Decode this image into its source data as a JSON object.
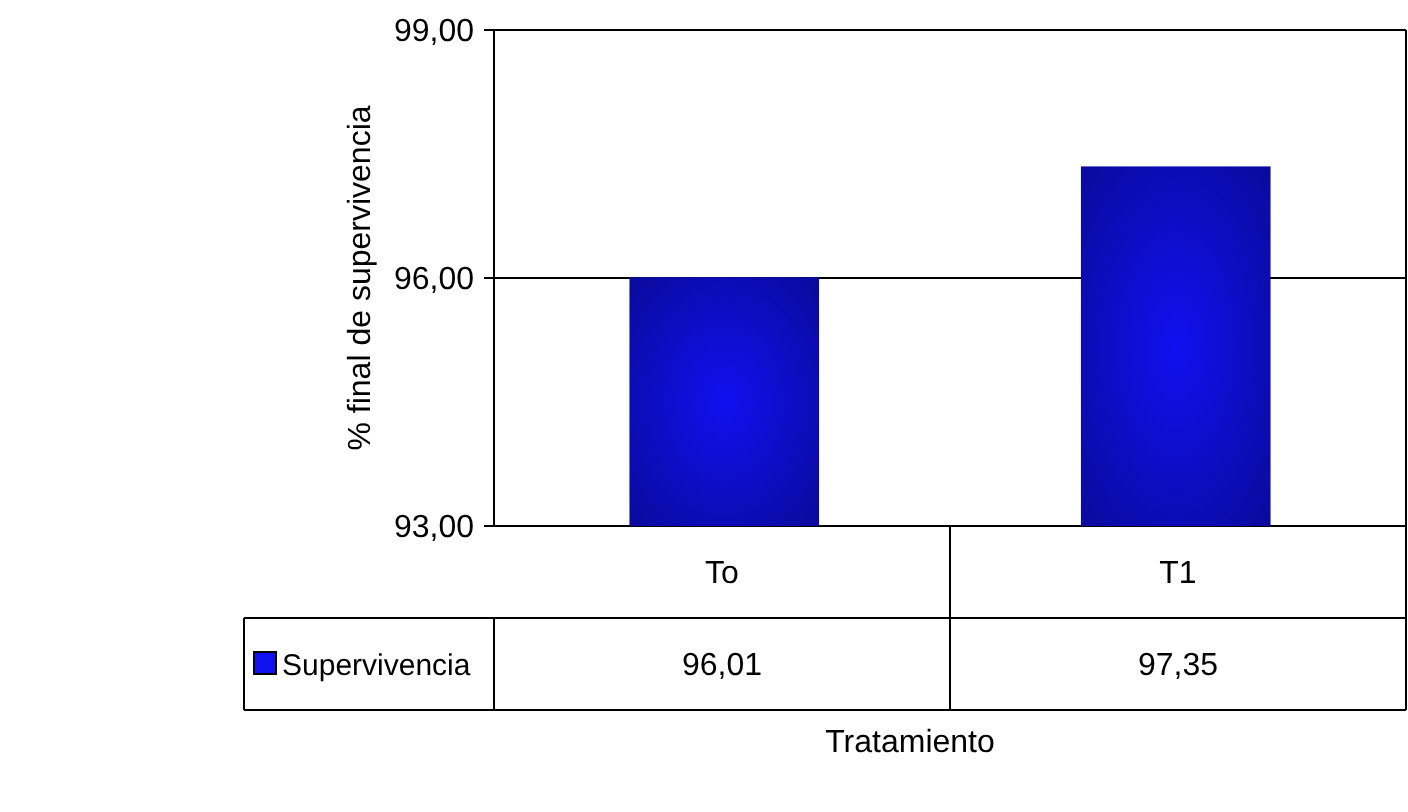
{
  "chart_data": {
    "type": "bar",
    "xlabel": "Tratamiento",
    "ylabel": "% final de supervivencia",
    "categories": [
      "To",
      "T1"
    ],
    "series": [
      {
        "name": "Supervivencia",
        "color": "#1010f0",
        "values": [
          96.01,
          97.35
        ],
        "value_labels": [
          "96,01",
          "97,35"
        ]
      }
    ],
    "ylim": [
      93,
      99
    ],
    "yticks": [
      {
        "value": 93,
        "label": "93,00"
      },
      {
        "value": 96,
        "label": "96,00"
      },
      {
        "value": 99,
        "label": "99,00"
      }
    ],
    "grid": "y",
    "legend": "bottom"
  }
}
